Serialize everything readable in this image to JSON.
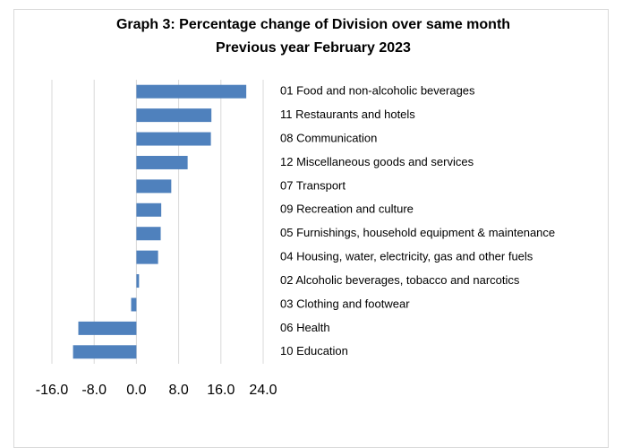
{
  "chart_data": {
    "type": "hbar",
    "title": "Graph 3: Percentage change of Division over same month",
    "subtitle": "Previous year February 2023",
    "categories": [
      "01 Food and non-alcoholic beverages",
      "11 Restaurants and hotels",
      "08 Communication",
      "12 Miscellaneous goods and services",
      "07 Transport",
      "09 Recreation and culture",
      "05 Furnishings, household equipment & maintenance",
      "04 Housing, water, electricity, gas and other fuels",
      "02 Alcoholic beverages, tobacco and narcotics",
      "03 Clothing and footwear",
      "06 Health",
      "10 Education"
    ],
    "values": [
      20.8,
      14.2,
      14.1,
      9.7,
      6.6,
      4.7,
      4.6,
      4.1,
      0.5,
      -1.0,
      -11.0,
      -12.0
    ],
    "color": "#4f81bd",
    "xlim": [
      -16,
      24
    ],
    "xticks": [
      {
        "value": -16,
        "label": "-16.0"
      },
      {
        "value": -8,
        "label": "-8.0"
      },
      {
        "value": 0,
        "label": "0.0"
      },
      {
        "value": 8,
        "label": "8.0"
      },
      {
        "value": 16,
        "label": "16.0"
      },
      {
        "value": 24,
        "label": "24.0"
      }
    ],
    "grid": true
  }
}
